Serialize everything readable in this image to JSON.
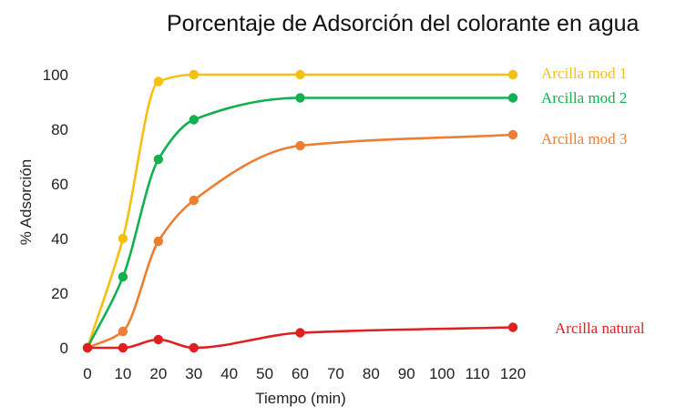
{
  "chart_data": {
    "type": "line",
    "title": "Porcentaje de Adsorción del colorante en agua",
    "xlabel": "Tiempo (min)",
    "ylabel": "% Adsorción",
    "xlim": [
      0,
      120
    ],
    "ylim": [
      0,
      100
    ],
    "x_ticks": [
      0,
      10,
      20,
      30,
      40,
      50,
      60,
      70,
      80,
      90,
      100,
      110,
      120
    ],
    "y_ticks": [
      0,
      20,
      40,
      60,
      80,
      100
    ],
    "grid": false,
    "legend": "right",
    "series": [
      {
        "name": "Arcilla mod 1",
        "color": "#f5c010",
        "x": [
          0,
          10,
          20,
          30,
          60,
          120
        ],
        "y": [
          0,
          40,
          97.5,
          100,
          100,
          100
        ]
      },
      {
        "name": "Arcilla mod 2",
        "color": "#11b050",
        "x": [
          0,
          10,
          20,
          30,
          60,
          120
        ],
        "y": [
          0,
          26,
          69,
          83.5,
          91.5,
          91.5
        ]
      },
      {
        "name": "Arcilla mod 3",
        "color": "#ed7d31",
        "x": [
          0,
          10,
          20,
          30,
          60,
          120
        ],
        "y": [
          0,
          6,
          39,
          54,
          74,
          78
        ]
      },
      {
        "name": "Arcilla natural",
        "color": "#e02020",
        "x": [
          0,
          10,
          20,
          30,
          60,
          120
        ],
        "y": [
          0,
          0,
          3,
          0,
          5.5,
          7.5
        ]
      }
    ]
  }
}
